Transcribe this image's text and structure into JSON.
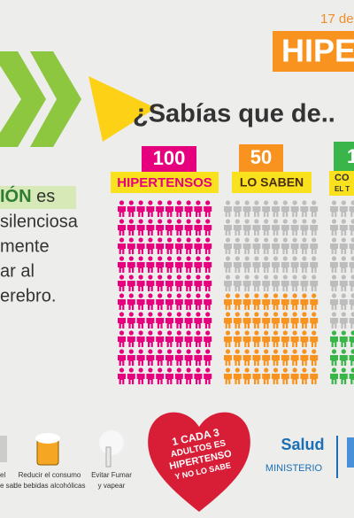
{
  "header": {
    "date": "17 de",
    "banner": "HIPE"
  },
  "question": "¿Sabías que de..",
  "groups": [
    {
      "value": 100,
      "label": "HIPERTENSOS"
    },
    {
      "value": 50,
      "label": "LO SABEN"
    },
    {
      "value": 1,
      "label_lines": [
        "CO",
        "EL T"
      ]
    }
  ],
  "left_text": {
    "highlight": "IÓN",
    "lines": [
      " es",
      "silenciosa",
      "mente",
      "ar al",
      "erebro."
    ]
  },
  "tips": [
    {
      "lines": [
        "el",
        "e sal"
      ]
    },
    {
      "lines": [
        "Reducir el consumo",
        "de bebidas alcohólicas"
      ]
    },
    {
      "lines": [
        "Evitar Fumar",
        "y vapear"
      ]
    }
  ],
  "heart": {
    "lines": [
      "1 CADA 3",
      "ADULTOS ES",
      "HIPERTENSO",
      "Y NO LO SABE"
    ]
  },
  "logo": {
    "name": "Salud",
    "sub": "MINISTERIO"
  }
}
